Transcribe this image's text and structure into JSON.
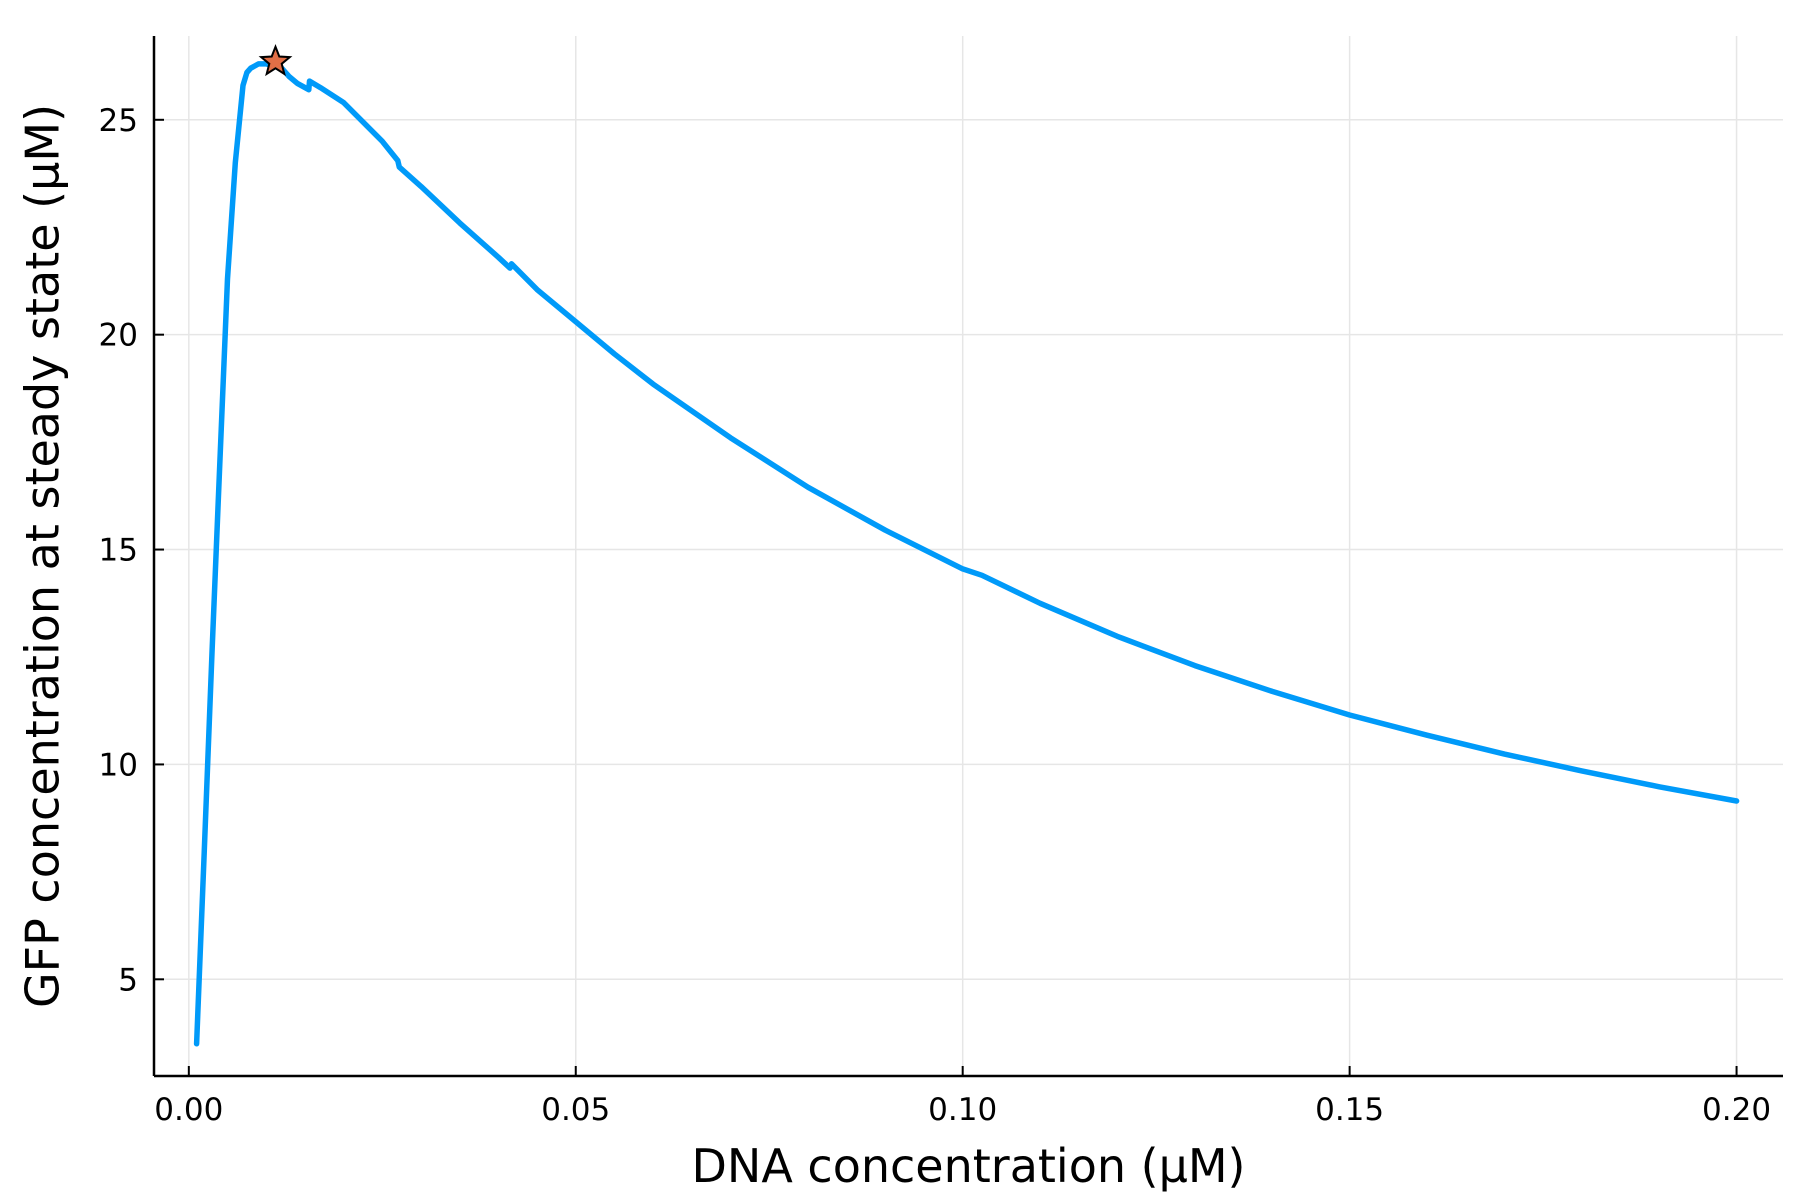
{
  "chart_data": {
    "type": "line",
    "title": "",
    "xlabel": "DNA concentration (µM)",
    "ylabel": "GFP concentration at steady state (µM)",
    "xlim": [
      -0.0045,
      0.206
    ],
    "ylim": [
      2.75,
      26.95
    ],
    "x_ticks": [
      0.0,
      0.05,
      0.1,
      0.15,
      0.2
    ],
    "x_tick_labels": [
      "0.00",
      "0.05",
      "0.10",
      "0.15",
      "0.20"
    ],
    "y_ticks": [
      5,
      10,
      15,
      20,
      25
    ],
    "y_tick_labels": [
      "5",
      "10",
      "15",
      "20",
      "25"
    ],
    "grid": true,
    "legend": "none",
    "colors": {
      "line": "#009af9",
      "marker": "#e26f46",
      "axis": "#000000",
      "grid": "#e6e6e6"
    },
    "series": [
      {
        "x": [
          0.001,
          0.002,
          0.003,
          0.004,
          0.005,
          0.006,
          0.007,
          0.0075,
          0.008,
          0.009,
          0.01,
          0.011,
          0.012,
          0.013,
          0.014,
          0.0155,
          0.0156,
          0.017,
          0.02,
          0.025,
          0.027,
          0.0272,
          0.03,
          0.035,
          0.04,
          0.0415,
          0.0417,
          0.045,
          0.05,
          0.055,
          0.06,
          0.07,
          0.08,
          0.09,
          0.1,
          0.1025,
          0.11,
          0.12,
          0.13,
          0.14,
          0.15,
          0.16,
          0.17,
          0.18,
          0.19,
          0.2
        ],
        "y": [
          3.5,
          8.0,
          12.6,
          17.0,
          21.3,
          24.0,
          25.8,
          26.1,
          26.2,
          26.3,
          26.3,
          26.25,
          26.2,
          26.0,
          25.85,
          25.7,
          25.9,
          25.75,
          25.4,
          24.5,
          24.05,
          23.9,
          23.45,
          22.6,
          21.8,
          21.55,
          21.65,
          21.05,
          20.3,
          19.55,
          18.85,
          17.6,
          16.45,
          15.45,
          14.55,
          14.4,
          13.75,
          12.98,
          12.3,
          11.7,
          11.15,
          10.68,
          10.24,
          9.85,
          9.48,
          9.15
        ]
      }
    ],
    "optimum_marker": {
      "x": 0.0112,
      "y": 26.35,
      "symbol": "star"
    }
  }
}
